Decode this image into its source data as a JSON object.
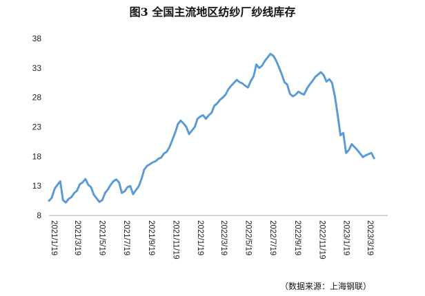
{
  "chart_data": {
    "type": "line",
    "title": "图3 全国主流地区纺纱厂纱线库存",
    "source": "（数据来源：上海钢联）",
    "xlabel": "",
    "ylabel": "",
    "ylim": [
      8,
      38
    ],
    "yticks": [
      8,
      13,
      18,
      23,
      28,
      33,
      38
    ],
    "xlim": [
      "2021-01-19",
      "2023-05-15"
    ],
    "xticks": [
      "2021/1/19",
      "2021/3/19",
      "2021/5/19",
      "2021/7/19",
      "2021/9/19",
      "2021/11/19",
      "2022/1/19",
      "2022/3/19",
      "2022/5/19",
      "2022/7/19",
      "2022/9/19",
      "2022/11/19",
      "2023/1/19",
      "2023/3/19"
    ],
    "grid": false,
    "legend": "none",
    "line_color": "#5b9bd5",
    "series": [
      {
        "points": [
          [
            "2021-01-19",
            10.5
          ],
          [
            "2021-01-26",
            11.0
          ],
          [
            "2021-02-02",
            12.5
          ],
          [
            "2021-02-09",
            13.2
          ],
          [
            "2021-02-16",
            13.8
          ],
          [
            "2021-02-23",
            10.6
          ],
          [
            "2021-03-02",
            10.2
          ],
          [
            "2021-03-09",
            10.8
          ],
          [
            "2021-03-16",
            11.1
          ],
          [
            "2021-03-23",
            11.8
          ],
          [
            "2021-03-30",
            12.2
          ],
          [
            "2021-04-06",
            13.3
          ],
          [
            "2021-04-13",
            13.6
          ],
          [
            "2021-04-20",
            14.2
          ],
          [
            "2021-04-27",
            13.2
          ],
          [
            "2021-05-04",
            12.8
          ],
          [
            "2021-05-11",
            11.5
          ],
          [
            "2021-05-18",
            10.9
          ],
          [
            "2021-05-25",
            10.3
          ],
          [
            "2021-06-01",
            10.6
          ],
          [
            "2021-06-08",
            11.8
          ],
          [
            "2021-06-15",
            12.4
          ],
          [
            "2021-06-22",
            13.2
          ],
          [
            "2021-06-29",
            13.8
          ],
          [
            "2021-07-06",
            14.1
          ],
          [
            "2021-07-13",
            13.6
          ],
          [
            "2021-07-20",
            11.8
          ],
          [
            "2021-07-27",
            12.1
          ],
          [
            "2021-08-03",
            12.8
          ],
          [
            "2021-08-10",
            13.0
          ],
          [
            "2021-08-17",
            11.6
          ],
          [
            "2021-08-24",
            12.3
          ],
          [
            "2021-08-31",
            12.9
          ],
          [
            "2021-09-07",
            14.2
          ],
          [
            "2021-09-14",
            15.8
          ],
          [
            "2021-09-21",
            16.4
          ],
          [
            "2021-09-28",
            16.7
          ],
          [
            "2021-10-05",
            17.0
          ],
          [
            "2021-10-12",
            17.2
          ],
          [
            "2021-10-19",
            17.6
          ],
          [
            "2021-10-26",
            17.8
          ],
          [
            "2021-11-02",
            18.5
          ],
          [
            "2021-11-09",
            18.8
          ],
          [
            "2021-11-16",
            19.6
          ],
          [
            "2021-11-23",
            20.8
          ],
          [
            "2021-11-30",
            22.0
          ],
          [
            "2021-12-07",
            23.5
          ],
          [
            "2021-12-14",
            24.1
          ],
          [
            "2021-12-21",
            23.6
          ],
          [
            "2021-12-28",
            23.0
          ],
          [
            "2022-01-04",
            21.8
          ],
          [
            "2022-01-11",
            22.4
          ],
          [
            "2022-01-18",
            23.0
          ],
          [
            "2022-01-25",
            24.4
          ],
          [
            "2022-02-01",
            24.8
          ],
          [
            "2022-02-08",
            25.0
          ],
          [
            "2022-02-15",
            24.4
          ],
          [
            "2022-02-22",
            25.0
          ],
          [
            "2022-03-01",
            25.4
          ],
          [
            "2022-03-08",
            26.6
          ],
          [
            "2022-03-15",
            27.0
          ],
          [
            "2022-03-22",
            27.6
          ],
          [
            "2022-03-29",
            28.0
          ],
          [
            "2022-04-05",
            28.5
          ],
          [
            "2022-04-12",
            29.4
          ],
          [
            "2022-04-19",
            30.0
          ],
          [
            "2022-04-26",
            30.5
          ],
          [
            "2022-05-03",
            31.0
          ],
          [
            "2022-05-10",
            30.6
          ],
          [
            "2022-05-17",
            30.4
          ],
          [
            "2022-05-24",
            30.0
          ],
          [
            "2022-05-31",
            29.7
          ],
          [
            "2022-06-07",
            30.8
          ],
          [
            "2022-06-14",
            31.6
          ],
          [
            "2022-06-21",
            33.6
          ],
          [
            "2022-06-28",
            33.0
          ],
          [
            "2022-07-05",
            33.4
          ],
          [
            "2022-07-12",
            34.2
          ],
          [
            "2022-07-19",
            34.8
          ],
          [
            "2022-07-26",
            35.4
          ],
          [
            "2022-08-02",
            35.1
          ],
          [
            "2022-08-09",
            34.3
          ],
          [
            "2022-08-16",
            33.2
          ],
          [
            "2022-08-23",
            32.0
          ],
          [
            "2022-08-30",
            30.6
          ],
          [
            "2022-09-06",
            30.2
          ],
          [
            "2022-09-13",
            28.6
          ],
          [
            "2022-09-20",
            28.2
          ],
          [
            "2022-09-27",
            28.5
          ],
          [
            "2022-10-04",
            29.0
          ],
          [
            "2022-10-11",
            28.7
          ],
          [
            "2022-10-18",
            28.5
          ],
          [
            "2022-10-25",
            29.5
          ],
          [
            "2022-11-01",
            30.2
          ],
          [
            "2022-11-08",
            30.8
          ],
          [
            "2022-11-15",
            31.5
          ],
          [
            "2022-11-22",
            31.9
          ],
          [
            "2022-11-29",
            32.3
          ],
          [
            "2022-12-06",
            31.8
          ],
          [
            "2022-12-13",
            30.7
          ],
          [
            "2022-12-20",
            31.1
          ],
          [
            "2022-12-27",
            30.5
          ],
          [
            "2023-01-03",
            28.2
          ],
          [
            "2023-01-10",
            25.0
          ],
          [
            "2023-01-17",
            21.6
          ],
          [
            "2023-01-24",
            22.0
          ],
          [
            "2023-01-31",
            18.6
          ],
          [
            "2023-02-07",
            19.1
          ],
          [
            "2023-02-14",
            20.1
          ],
          [
            "2023-02-21",
            19.6
          ],
          [
            "2023-02-28",
            19.1
          ],
          [
            "2023-03-07",
            18.5
          ],
          [
            "2023-03-14",
            17.9
          ],
          [
            "2023-03-21",
            18.2
          ],
          [
            "2023-03-28",
            18.4
          ],
          [
            "2023-04-04",
            18.6
          ],
          [
            "2023-04-11",
            17.7
          ]
        ]
      }
    ]
  }
}
